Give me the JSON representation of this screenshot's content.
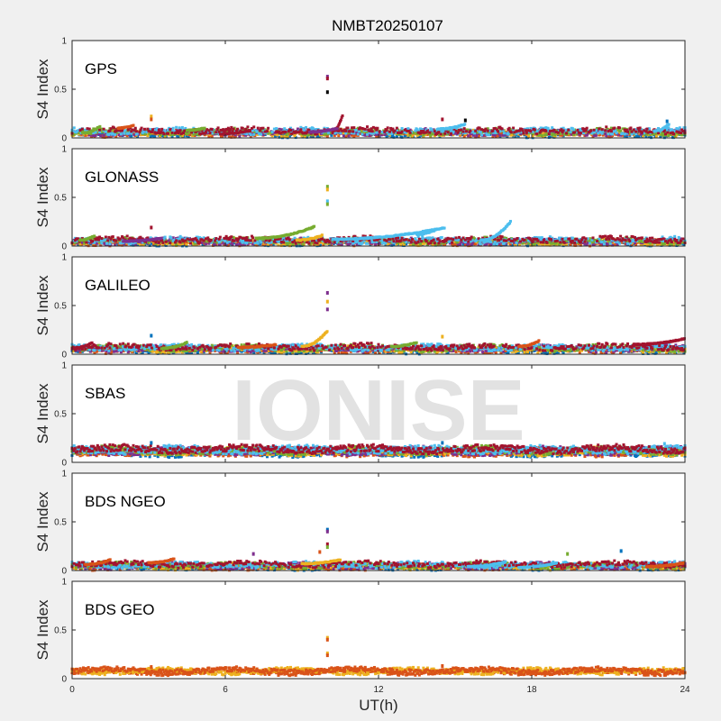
{
  "chart_data": {
    "type": "scatter",
    "title": "NMBT20250107",
    "xlabel": "UT(h)",
    "ylabel": "S4 Index",
    "xlim": [
      0,
      24
    ],
    "ylim": [
      0,
      1
    ],
    "xticks": [
      "0",
      "6",
      "12",
      "18",
      "24"
    ],
    "yticks": [
      "0",
      "0.5",
      "1"
    ],
    "watermark": "IONISE",
    "grid": false,
    "colors": [
      "#0072BD",
      "#D95319",
      "#EDB120",
      "#7E2F8E",
      "#77AC30",
      "#4DBEEE",
      "#A2142F"
    ],
    "panels": [
      {
        "label": "GPS",
        "base_level": 0.06,
        "outliers": [
          [
            10.0,
            0.63,
            3
          ],
          [
            10.0,
            0.61,
            6
          ],
          [
            10.0,
            0.47,
            7
          ],
          [
            3.1,
            0.22,
            2
          ],
          [
            3.1,
            0.19,
            1
          ],
          [
            14.5,
            0.19,
            6
          ],
          [
            15.4,
            0.18,
            7
          ],
          [
            23.3,
            0.17,
            0
          ]
        ],
        "arcs": [
          [
            10.2,
            10.6,
            0.07,
            0.24,
            6
          ],
          [
            0.4,
            1.1,
            0.05,
            0.12,
            4
          ],
          [
            1.8,
            2.4,
            0.1,
            0.13,
            1
          ],
          [
            4.5,
            5.2,
            0.08,
            0.1,
            4
          ],
          [
            9.3,
            10.4,
            0.06,
            0.1,
            3
          ],
          [
            14.3,
            15.4,
            0.09,
            0.14,
            5
          ],
          [
            22.8,
            23.4,
            0.07,
            0.15,
            5
          ],
          [
            5.8,
            7.0,
            0.04,
            0.08,
            6
          ]
        ]
      },
      {
        "label": "GLONASS",
        "base_level": 0.05,
        "outliers": [
          [
            10.0,
            0.61,
            4
          ],
          [
            10.0,
            0.58,
            2
          ],
          [
            10.0,
            0.46,
            5
          ],
          [
            10.0,
            0.43,
            4
          ],
          [
            3.1,
            0.19,
            6
          ]
        ],
        "arcs": [
          [
            7.2,
            9.5,
            0.08,
            0.2,
            4
          ],
          [
            10.2,
            14.6,
            0.07,
            0.19,
            5
          ],
          [
            16.0,
            17.2,
            0.06,
            0.26,
            5
          ],
          [
            0.3,
            0.9,
            0.06,
            0.11,
            4
          ],
          [
            13.5,
            14.2,
            0.12,
            0.16,
            5
          ],
          [
            8.8,
            9.8,
            0.06,
            0.11,
            2
          ],
          [
            2.0,
            3.5,
            0.05,
            0.08,
            3
          ]
        ]
      },
      {
        "label": "GALILEO",
        "base_level": 0.06,
        "outliers": [
          [
            10.0,
            0.63,
            3
          ],
          [
            10.0,
            0.54,
            2
          ],
          [
            10.0,
            0.46,
            3
          ],
          [
            3.1,
            0.19,
            0
          ],
          [
            14.5,
            0.18,
            2
          ]
        ],
        "arcs": [
          [
            9.0,
            10.0,
            0.08,
            0.24,
            2
          ],
          [
            0.0,
            0.8,
            0.06,
            0.12,
            6
          ],
          [
            3.5,
            4.5,
            0.06,
            0.12,
            4
          ],
          [
            22.0,
            24.0,
            0.1,
            0.16,
            6
          ],
          [
            6.5,
            8.0,
            0.07,
            0.1,
            1
          ],
          [
            12.5,
            13.5,
            0.08,
            0.12,
            4
          ],
          [
            17.5,
            18.3,
            0.08,
            0.14,
            1
          ]
        ]
      },
      {
        "label": "SBAS",
        "base_level": 0.12,
        "outliers": [
          [
            3.1,
            0.2,
            0
          ],
          [
            14.5,
            0.2,
            0
          ],
          [
            23.2,
            0.19,
            5
          ]
        ],
        "arcs": []
      },
      {
        "label": "BDS NGEO",
        "base_level": 0.05,
        "outliers": [
          [
            10.0,
            0.42,
            0
          ],
          [
            10.0,
            0.4,
            3
          ],
          [
            10.0,
            0.27,
            6
          ],
          [
            10.0,
            0.24,
            4
          ],
          [
            9.7,
            0.19,
            1
          ],
          [
            7.1,
            0.17,
            3
          ],
          [
            21.5,
            0.2,
            0
          ],
          [
            19.4,
            0.17,
            4
          ]
        ],
        "arcs": [
          [
            0.5,
            1.5,
            0.06,
            0.11,
            1
          ],
          [
            3.0,
            4.0,
            0.08,
            0.12,
            1
          ],
          [
            9.0,
            10.5,
            0.07,
            0.11,
            2
          ],
          [
            15.5,
            17.0,
            0.04,
            0.09,
            5
          ],
          [
            17.5,
            19.0,
            0.03,
            0.08,
            5
          ],
          [
            22.5,
            24.0,
            0.04,
            0.08,
            1
          ]
        ]
      },
      {
        "label": "BDS GEO",
        "base_level": 0.08,
        "outliers": [
          [
            10.0,
            0.42,
            2
          ],
          [
            10.0,
            0.4,
            1
          ],
          [
            10.0,
            0.26,
            2
          ],
          [
            10.0,
            0.24,
            1
          ],
          [
            3.1,
            0.12,
            1
          ],
          [
            14.5,
            0.13,
            1
          ]
        ],
        "arcs": []
      }
    ]
  }
}
